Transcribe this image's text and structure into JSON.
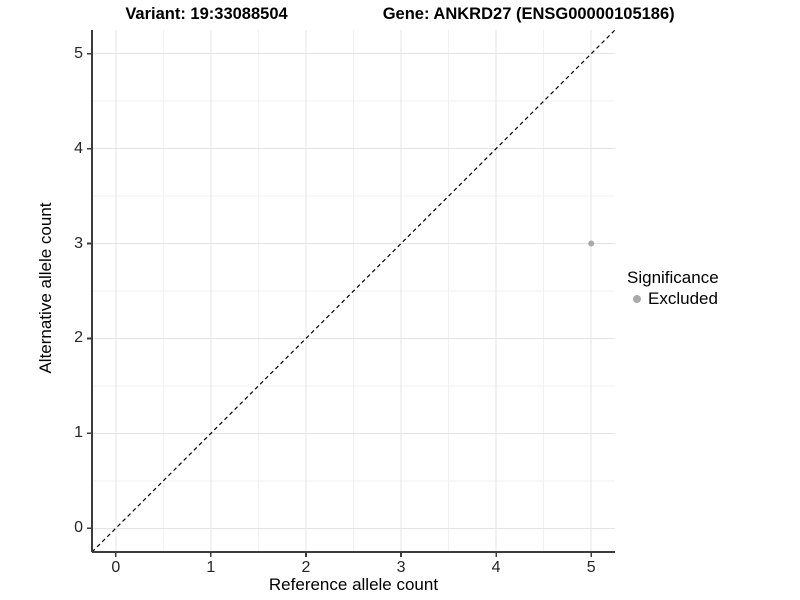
{
  "title": {
    "variant": "Variant: 19:33088504",
    "gene": "Gene: ANKRD27 (ENSG00000105186)"
  },
  "chart_data": {
    "type": "scatter",
    "title": "Variant: 19:33088504   Gene: ANKRD27 (ENSG00000105186)",
    "xlabel": "Reference allele count",
    "ylabel": "Alternative allele count",
    "xlim": [
      -0.25,
      5.25
    ],
    "ylim": [
      -0.25,
      5.25
    ],
    "x_ticks": [
      0,
      1,
      2,
      3,
      4,
      5
    ],
    "y_ticks": [
      0,
      1,
      2,
      3,
      4,
      5
    ],
    "x_minor_ticks": [
      0.5,
      1.5,
      2.5,
      3.5,
      4.5
    ],
    "y_minor_ticks": [
      0.5,
      1.5,
      2.5,
      3.5,
      4.5
    ],
    "grid": true,
    "series": [
      {
        "name": "Excluded",
        "color": "#aaaaaa",
        "points": [
          {
            "x": 5,
            "y": 3
          }
        ]
      }
    ],
    "reference_line": {
      "type": "identity",
      "style": "dashed",
      "color": "#000000"
    },
    "legend": {
      "title": "Significance",
      "position": "right",
      "entries": [
        {
          "label": "Excluded",
          "color": "#aaaaaa"
        }
      ]
    }
  },
  "colors": {
    "point": "#aaaaaa",
    "reference_line": "#000000",
    "major_grid": "#e4e4e4",
    "minor_grid": "#f1f1f1",
    "axis_line": "#3c3c3c"
  }
}
